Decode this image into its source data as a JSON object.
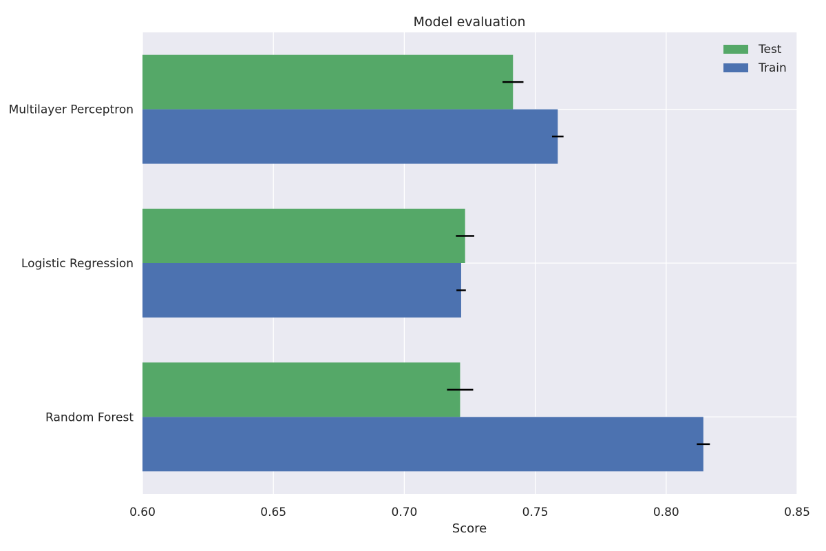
{
  "chart_data": {
    "type": "bar",
    "orientation": "horizontal",
    "title": "Model evaluation",
    "xlabel": "Score",
    "ylabel": "",
    "xlim": [
      0.6,
      0.85
    ],
    "xticks": [
      0.6,
      0.65,
      0.7,
      0.75,
      0.8,
      0.85
    ],
    "xtick_labels": [
      "0.60",
      "0.65",
      "0.70",
      "0.75",
      "0.80",
      "0.85"
    ],
    "categories": [
      "Multilayer Perceptron",
      "Logistic Regression",
      "Random Forest"
    ],
    "series": [
      {
        "name": "Test",
        "color": "#55a868",
        "values": [
          0.7415,
          0.7232,
          0.7213
        ],
        "errors": [
          0.004,
          0.0035,
          0.005
        ]
      },
      {
        "name": "Train",
        "color": "#4c72b0",
        "values": [
          0.7586,
          0.7217,
          0.8142
        ],
        "errors": [
          0.0022,
          0.0018,
          0.0025
        ]
      }
    ],
    "error_bar_color": "#000000",
    "background_color": "#eaeaf2",
    "grid": true,
    "grid_color": "#ffffff",
    "legend_position": "top-right"
  }
}
